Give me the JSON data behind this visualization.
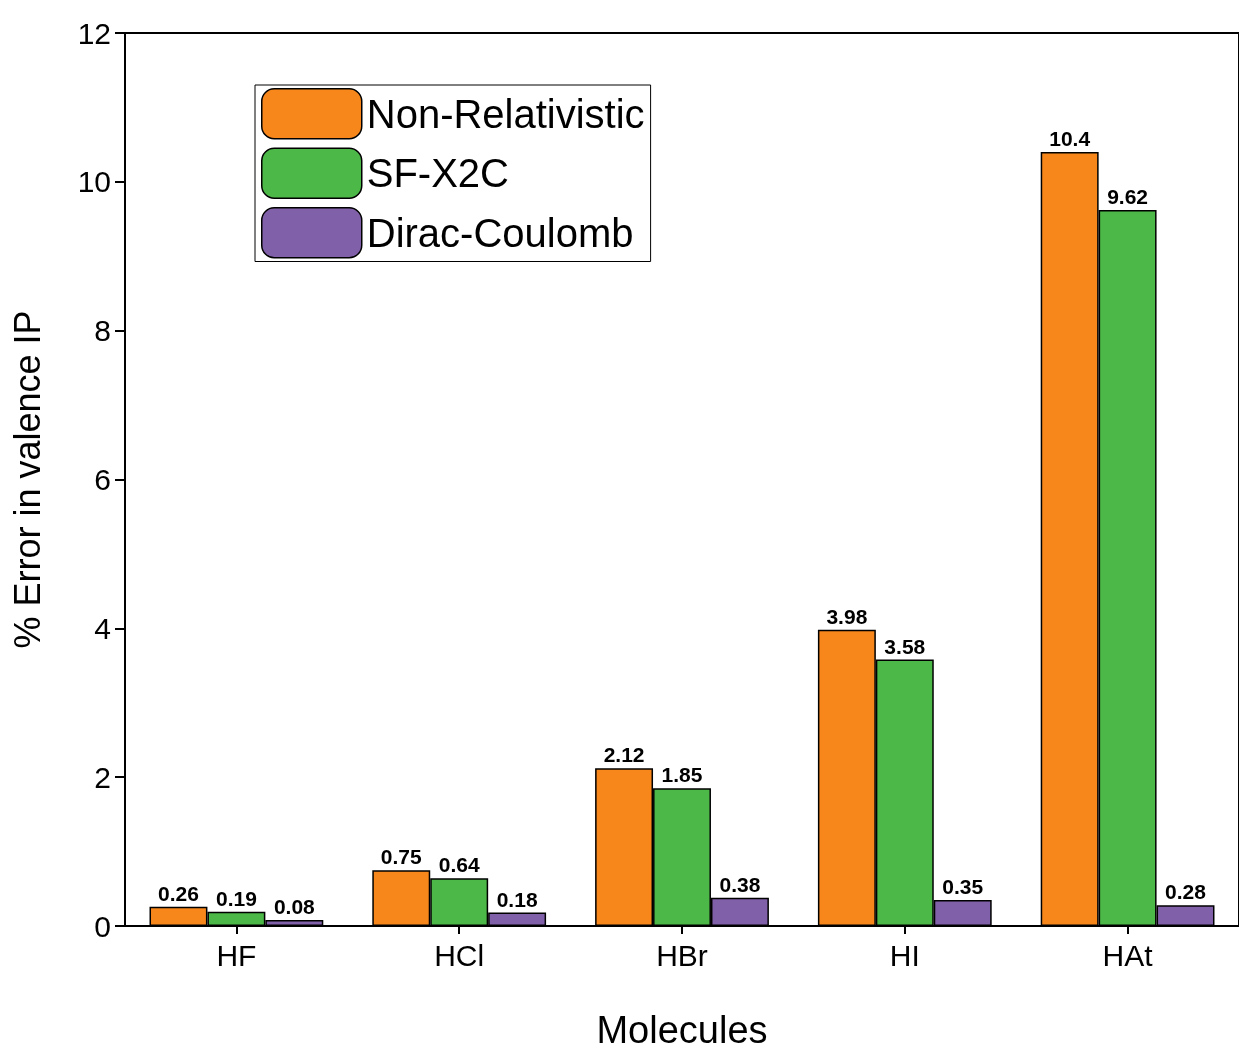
{
  "chart_data": {
    "type": "bar",
    "xlabel": "Molecules",
    "ylabel": "% Error in valence IP",
    "categories": [
      "HF",
      "HCl",
      "HBr",
      "HI",
      "HAt"
    ],
    "series": [
      {
        "name": "Non-Relativistic",
        "color": "#f7861b",
        "values": [
          0.26,
          0.75,
          2.12,
          3.98,
          10.4
        ]
      },
      {
        "name": "SF-X2C",
        "color": "#4cb848",
        "values": [
          0.19,
          0.64,
          1.85,
          3.58,
          9.62
        ]
      },
      {
        "name": "Dirac-Coulomb",
        "color": "#8060a8",
        "values": [
          0.08,
          0.18,
          0.38,
          0.35,
          0.28
        ]
      }
    ],
    "ylim": [
      0,
      12
    ],
    "yticks": [
      0,
      2,
      4,
      6,
      8,
      10,
      12
    ],
    "data_labels": true,
    "legend": "top left",
    "grid": false
  }
}
